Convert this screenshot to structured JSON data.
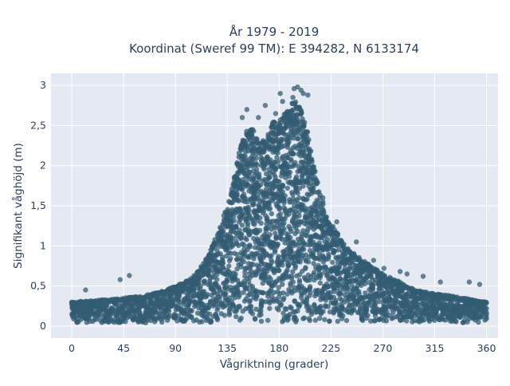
{
  "chart_data": {
    "type": "scatter",
    "title_line1": "År 1979 - 2019",
    "title_line2": "Koordinat (Sweref 99 TM): E 394282, N 6133174",
    "xlabel": "Vågriktning (grader)",
    "ylabel": "Signifikant våghöjd (m)",
    "xlim": [
      -18,
      370
    ],
    "ylim": [
      -0.15,
      3.15
    ],
    "x_ticks": [
      0,
      45,
      90,
      135,
      180,
      225,
      270,
      315,
      360
    ],
    "x_tick_labels": [
      "0",
      "45",
      "90",
      "135",
      "180",
      "225",
      "270",
      "315",
      "360"
    ],
    "y_ticks": [
      0,
      0.5,
      1,
      1.5,
      2,
      2.5,
      3
    ],
    "y_tick_labels": [
      "0",
      "0,5",
      "1",
      "1,5",
      "2",
      "2,5",
      "3"
    ],
    "grid": true,
    "marker_color": "#335c73",
    "background": "#e5e9f2",
    "upper_envelope": {
      "x": [
        0,
        20,
        45,
        70,
        90,
        105,
        115,
        125,
        135,
        140,
        145,
        150,
        155,
        160,
        165,
        170,
        175,
        180,
        185,
        190,
        195,
        200,
        205,
        210,
        215,
        220,
        225,
        235,
        245,
        260,
        270,
        285,
        300,
        320,
        340,
        360
      ],
      "y": [
        0.3,
        0.32,
        0.35,
        0.4,
        0.5,
        0.6,
        0.8,
        1.1,
        1.5,
        1.8,
        2.15,
        2.4,
        2.5,
        2.35,
        2.3,
        2.45,
        2.55,
        2.6,
        2.65,
        2.75,
        2.85,
        2.7,
        2.4,
        2.0,
        1.7,
        1.45,
        1.3,
        1.05,
        0.9,
        0.75,
        0.65,
        0.55,
        0.45,
        0.4,
        0.35,
        0.3
      ]
    },
    "outliers": [
      {
        "x": 42,
        "y": 0.58
      },
      {
        "x": 50,
        "y": 0.63
      },
      {
        "x": 12,
        "y": 0.45
      },
      {
        "x": 125,
        "y": 0.81
      },
      {
        "x": 152,
        "y": 2.7
      },
      {
        "x": 148,
        "y": 2.6
      },
      {
        "x": 162,
        "y": 2.6
      },
      {
        "x": 168,
        "y": 2.75
      },
      {
        "x": 181,
        "y": 2.9
      },
      {
        "x": 183,
        "y": 2.8
      },
      {
        "x": 192,
        "y": 2.85
      },
      {
        "x": 193,
        "y": 2.96
      },
      {
        "x": 196,
        "y": 2.98
      },
      {
        "x": 199,
        "y": 2.94
      },
      {
        "x": 201,
        "y": 2.9
      },
      {
        "x": 205,
        "y": 2.88
      },
      {
        "x": 177,
        "y": 2.65
      },
      {
        "x": 157,
        "y": 2.45
      },
      {
        "x": 218,
        "y": 1.6
      },
      {
        "x": 230,
        "y": 1.3
      },
      {
        "x": 247,
        "y": 1.05
      },
      {
        "x": 262,
        "y": 0.82
      },
      {
        "x": 271,
        "y": 0.72
      },
      {
        "x": 285,
        "y": 0.68
      },
      {
        "x": 305,
        "y": 0.62
      },
      {
        "x": 320,
        "y": 0.55
      },
      {
        "x": 345,
        "y": 0.55
      },
      {
        "x": 354,
        "y": 0.52
      },
      {
        "x": 291,
        "y": 0.65
      },
      {
        "x": 95,
        "y": 0.5
      }
    ]
  }
}
